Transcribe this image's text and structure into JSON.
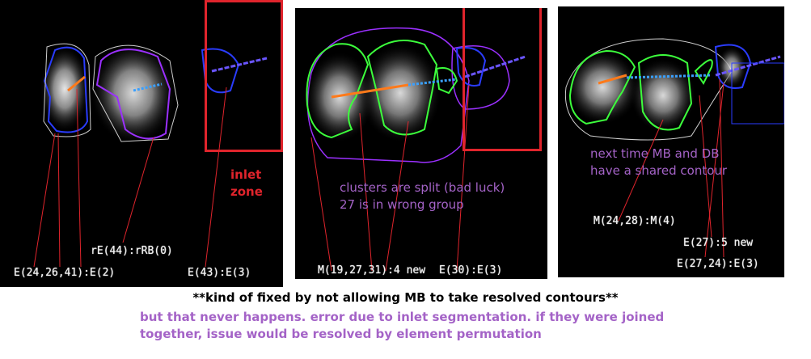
{
  "panels": [
    {
      "id": "panel-1",
      "labels": {
        "e_24_26_41": "E(24,26,41):E(2)",
        "re_44": "rE(44):rRB(0)",
        "e_43": "E(43):E(3)"
      },
      "inlet_note": [
        "inlet",
        "zone"
      ]
    },
    {
      "id": "panel-2",
      "labels": {
        "m_19_27_31": "M(19,27,31):4 new",
        "e_30": "E(30):E(3)"
      },
      "note": [
        "clusters are split (bad luck)",
        "27 is in wrong group"
      ]
    },
    {
      "id": "panel-3",
      "labels": {
        "m_24_28": "M(24,28):M(4)",
        "e_27": "E(27):5 new",
        "e_27_24": "E(27,24):E(3)"
      },
      "note": [
        "next time MB and DB",
        "have a shared contour"
      ]
    }
  ],
  "footer": {
    "bold_line": "**kind of fixed by not allowing MB to take resolved contours**",
    "purple_line": "but that never happens. error due to inlet segmentation. if they were joined together, issue would be resolved by element permutation"
  },
  "colors": {
    "panel_bg": "#000000",
    "annotation_red": "#e0242c",
    "note_purple": "#a463c7",
    "contour_blue": "#2a3cff",
    "contour_green": "#3cff3c",
    "contour_violet": "#9b30ff"
  }
}
